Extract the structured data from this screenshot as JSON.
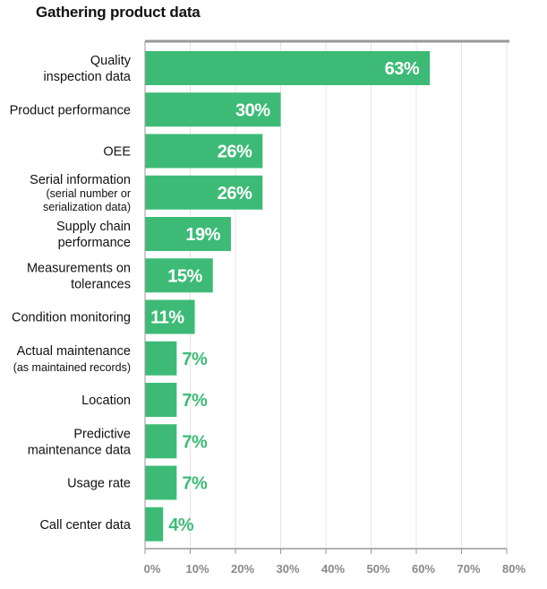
{
  "chart_data": {
    "type": "bar",
    "orientation": "horizontal",
    "title": "Gathering product data",
    "xlabel": "",
    "ylabel": "",
    "xlim": [
      0,
      80
    ],
    "grid": true,
    "legend": "none",
    "categories": [
      [
        "Quality",
        "inspection data"
      ],
      [
        "Product performance"
      ],
      [
        "OEE"
      ],
      [
        "Serial information",
        "(serial number or",
        "serialization data)"
      ],
      [
        "Supply chain",
        "performance"
      ],
      [
        "Measurements on",
        "tolerances"
      ],
      [
        "Condition monitoring"
      ],
      [
        "Actual maintenance",
        "(as maintained records)"
      ],
      [
        "Location"
      ],
      [
        "Predictive",
        "maintenance data"
      ],
      [
        "Usage rate"
      ],
      [
        "Call center data"
      ]
    ],
    "values": [
      63,
      30,
      26,
      26,
      19,
      15,
      11,
      7,
      7,
      7,
      7,
      4
    ],
    "value_labels": [
      "63%",
      "30%",
      "26%",
      "26%",
      "19%",
      "15%",
      "11%",
      "7%",
      "7%",
      "7%",
      "7%",
      "4%"
    ],
    "x_ticks": [
      "0%",
      "10%",
      "20%",
      "30%",
      "40%",
      "50%",
      "60%",
      "70%",
      "80%"
    ],
    "x_tick_values": [
      0,
      10,
      20,
      30,
      40,
      50,
      60,
      70,
      80
    ],
    "colors": {
      "bar": "#3dbb76",
      "label_inside": "#ffffff",
      "label_outside": "#3dbb76",
      "axis": "#999999",
      "grid": "#e4e4e4",
      "tick_label": "#888888",
      "category_label": "#111111"
    }
  }
}
